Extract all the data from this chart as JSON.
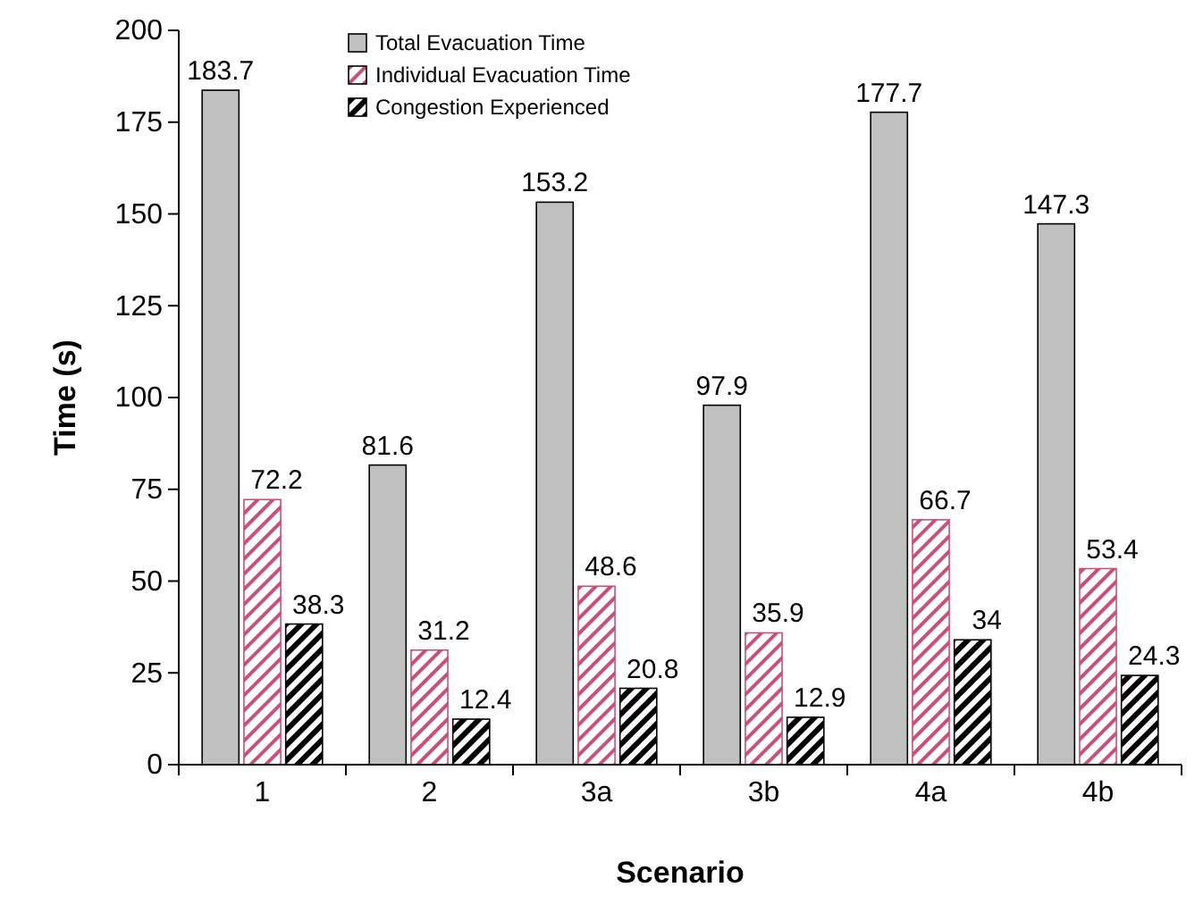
{
  "chart_data": {
    "type": "bar",
    "xlabel": "Scenario",
    "ylabel": "Time (s)",
    "categories": [
      "1",
      "2",
      "3a",
      "3b",
      "4a",
      "4b"
    ],
    "series": [
      {
        "name": "Total Evacuation Time",
        "color": "#c0c0c0",
        "values": [
          183.7,
          81.6,
          153.2,
          97.9,
          177.7,
          147.3
        ]
      },
      {
        "name": "Individual Evacuation Time",
        "color": "#c8507a",
        "values": [
          72.2,
          31.2,
          48.6,
          35.9,
          66.7,
          53.4
        ]
      },
      {
        "name": "Congestion Experienced",
        "color": "#000000",
        "values": [
          38.3,
          12.4,
          20.8,
          12.9,
          34,
          24.3
        ]
      }
    ],
    "ylim": [
      0,
      200
    ],
    "yticks": [
      0,
      25,
      50,
      75,
      100,
      125,
      150,
      175,
      200
    ],
    "data_labels": true,
    "legend": "top left",
    "grid": false
  }
}
